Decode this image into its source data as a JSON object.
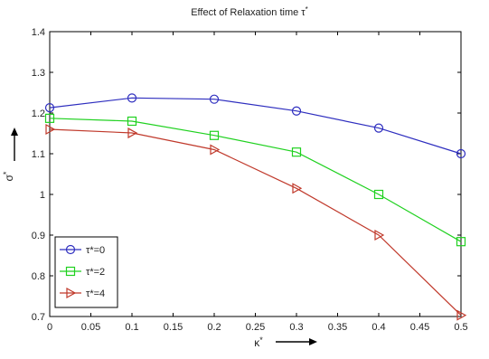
{
  "chart_data": {
    "type": "line",
    "title": "Effect of Relaxation time τ",
    "title_superscript": "*",
    "xlabel": "κ",
    "xlabel_superscript": "*",
    "ylabel": "σ",
    "ylabel_superscript": "*",
    "x": [
      0,
      0.1,
      0.2,
      0.3,
      0.4,
      0.5
    ],
    "xlim": [
      0,
      0.5
    ],
    "ylim": [
      0.7,
      1.4
    ],
    "x_ticks": [
      "0",
      "0.05",
      "0.1",
      "0.15",
      "0.2",
      "0.25",
      "0.3",
      "0.35",
      "0.4",
      "0.45",
      "0.5"
    ],
    "y_ticks": [
      "0.7",
      "0.8",
      "0.9",
      "1",
      "1.1",
      "1.2",
      "1.3",
      "1.4"
    ],
    "grid": false,
    "legend_position": "bottom-left",
    "series": [
      {
        "name": "τ*=0",
        "color": "#2e2ebf",
        "marker": "circle",
        "values": [
          1.213,
          1.237,
          1.234,
          1.205,
          1.163,
          1.1
        ]
      },
      {
        "name": "τ*=2",
        "color": "#1fd11f",
        "marker": "square",
        "values": [
          1.187,
          1.18,
          1.145,
          1.104,
          1.0,
          0.884
        ]
      },
      {
        "name": "τ*=4",
        "color": "#c0392b",
        "marker": "triangle-right",
        "values": [
          1.16,
          1.151,
          1.11,
          1.015,
          0.9,
          0.703
        ]
      }
    ]
  }
}
